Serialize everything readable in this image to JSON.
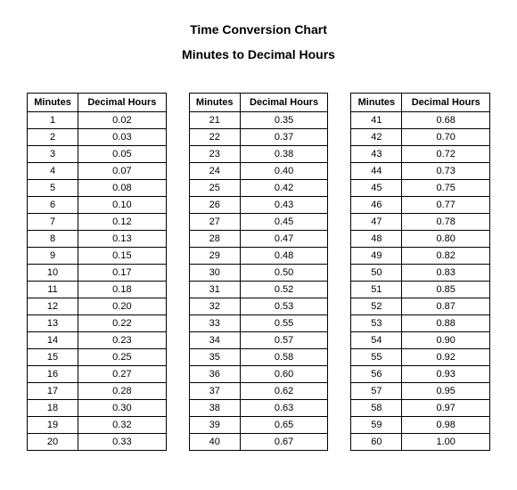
{
  "title": "Time Conversion Chart",
  "subtitle": "Minutes to Decimal Hours",
  "headers": {
    "minutes": "Minutes",
    "decimal": "Decimal Hours"
  },
  "tables": [
    {
      "rows": [
        {
          "minutes": "1",
          "decimal": "0.02"
        },
        {
          "minutes": "2",
          "decimal": "0.03"
        },
        {
          "minutes": "3",
          "decimal": "0.05"
        },
        {
          "minutes": "4",
          "decimal": "0.07"
        },
        {
          "minutes": "5",
          "decimal": "0.08"
        },
        {
          "minutes": "6",
          "decimal": "0.10"
        },
        {
          "minutes": "7",
          "decimal": "0.12"
        },
        {
          "minutes": "8",
          "decimal": "0.13"
        },
        {
          "minutes": "9",
          "decimal": "0.15"
        },
        {
          "minutes": "10",
          "decimal": "0.17"
        },
        {
          "minutes": "11",
          "decimal": "0.18"
        },
        {
          "minutes": "12",
          "decimal": "0.20"
        },
        {
          "minutes": "13",
          "decimal": "0.22"
        },
        {
          "minutes": "14",
          "decimal": "0.23"
        },
        {
          "minutes": "15",
          "decimal": "0.25"
        },
        {
          "minutes": "16",
          "decimal": "0.27"
        },
        {
          "minutes": "17",
          "decimal": "0.28"
        },
        {
          "minutes": "18",
          "decimal": "0.30"
        },
        {
          "minutes": "19",
          "decimal": "0.32"
        },
        {
          "minutes": "20",
          "decimal": "0.33"
        }
      ]
    },
    {
      "rows": [
        {
          "minutes": "21",
          "decimal": "0.35"
        },
        {
          "minutes": "22",
          "decimal": "0.37"
        },
        {
          "minutes": "23",
          "decimal": "0.38"
        },
        {
          "minutes": "24",
          "decimal": "0.40"
        },
        {
          "minutes": "25",
          "decimal": "0.42"
        },
        {
          "minutes": "26",
          "decimal": "0.43"
        },
        {
          "minutes": "27",
          "decimal": "0.45"
        },
        {
          "minutes": "28",
          "decimal": "0.47"
        },
        {
          "minutes": "29",
          "decimal": "0.48"
        },
        {
          "minutes": "30",
          "decimal": "0.50"
        },
        {
          "minutes": "31",
          "decimal": "0.52"
        },
        {
          "minutes": "32",
          "decimal": "0.53"
        },
        {
          "minutes": "33",
          "decimal": "0.55"
        },
        {
          "minutes": "34",
          "decimal": "0.57"
        },
        {
          "minutes": "35",
          "decimal": "0.58"
        },
        {
          "minutes": "36",
          "decimal": "0.60"
        },
        {
          "minutes": "37",
          "decimal": "0.62"
        },
        {
          "minutes": "38",
          "decimal": "0.63"
        },
        {
          "minutes": "39",
          "decimal": "0.65"
        },
        {
          "minutes": "40",
          "decimal": "0.67"
        }
      ]
    },
    {
      "rows": [
        {
          "minutes": "41",
          "decimal": "0.68"
        },
        {
          "minutes": "42",
          "decimal": "0.70"
        },
        {
          "minutes": "43",
          "decimal": "0.72"
        },
        {
          "minutes": "44",
          "decimal": "0.73"
        },
        {
          "minutes": "45",
          "decimal": "0.75"
        },
        {
          "minutes": "46",
          "decimal": "0.77"
        },
        {
          "minutes": "47",
          "decimal": "0.78"
        },
        {
          "minutes": "48",
          "decimal": "0.80"
        },
        {
          "minutes": "49",
          "decimal": "0.82"
        },
        {
          "minutes": "50",
          "decimal": "0.83"
        },
        {
          "minutes": "51",
          "decimal": "0.85"
        },
        {
          "minutes": "52",
          "decimal": "0.87"
        },
        {
          "minutes": "53",
          "decimal": "0.88"
        },
        {
          "minutes": "54",
          "decimal": "0.90"
        },
        {
          "minutes": "55",
          "decimal": "0.92"
        },
        {
          "minutes": "56",
          "decimal": "0.93"
        },
        {
          "minutes": "57",
          "decimal": "0.95"
        },
        {
          "minutes": "58",
          "decimal": "0.97"
        },
        {
          "minutes": "59",
          "decimal": "0.98"
        },
        {
          "minutes": "60",
          "decimal": "1.00"
        }
      ]
    }
  ]
}
